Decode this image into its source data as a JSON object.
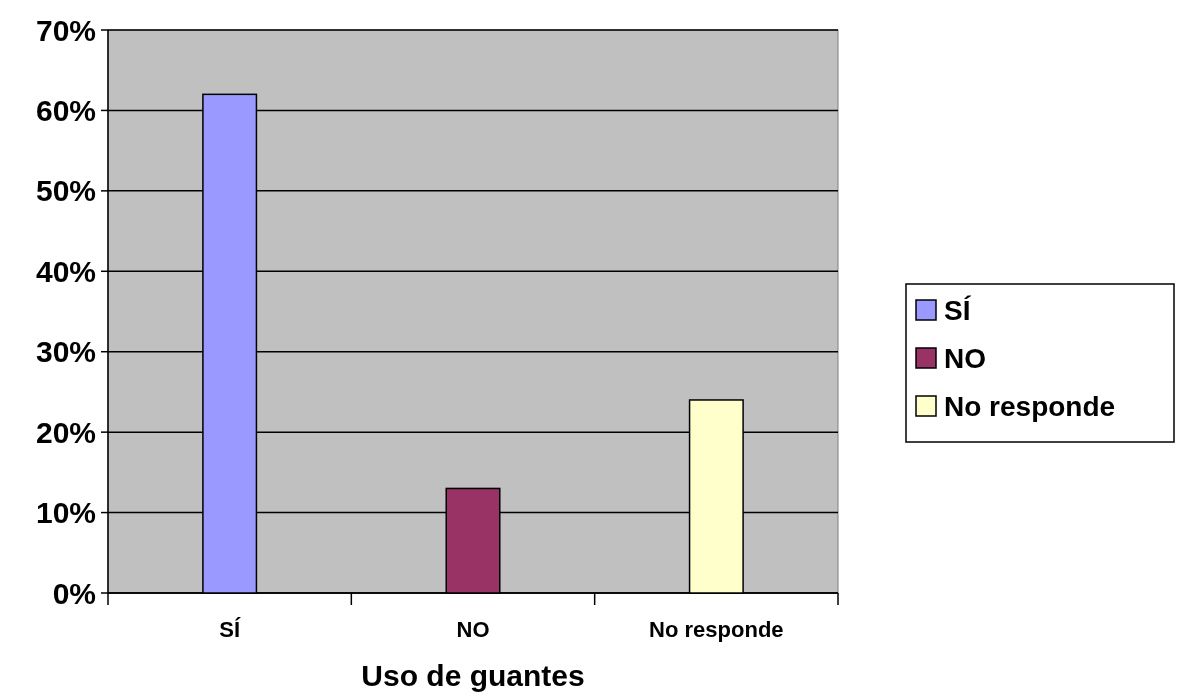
{
  "chart_data": {
    "type": "bar",
    "xlabel": "Uso de guantes",
    "categories": [
      "SÍ",
      "NO",
      "No responde"
    ],
    "series": [
      {
        "name": "SÍ",
        "color": "#9999ff",
        "values": [
          62,
          null,
          null
        ]
      },
      {
        "name": "NO",
        "color": "#993366",
        "values": [
          null,
          13,
          null
        ]
      },
      {
        "name": "No responde",
        "color": "#ffffcc",
        "values": [
          null,
          null,
          24
        ]
      }
    ],
    "ylim": [
      0,
      70
    ],
    "yticks": [
      {
        "value": 0,
        "label": "0%"
      },
      {
        "value": 10,
        "label": "10%"
      },
      {
        "value": 20,
        "label": "20%"
      },
      {
        "value": 30,
        "label": "30%"
      },
      {
        "value": 40,
        "label": "40%"
      },
      {
        "value": 50,
        "label": "50%"
      },
      {
        "value": 60,
        "label": "60%"
      },
      {
        "value": 70,
        "label": "70%"
      }
    ],
    "grid": "y",
    "legend": "right"
  }
}
